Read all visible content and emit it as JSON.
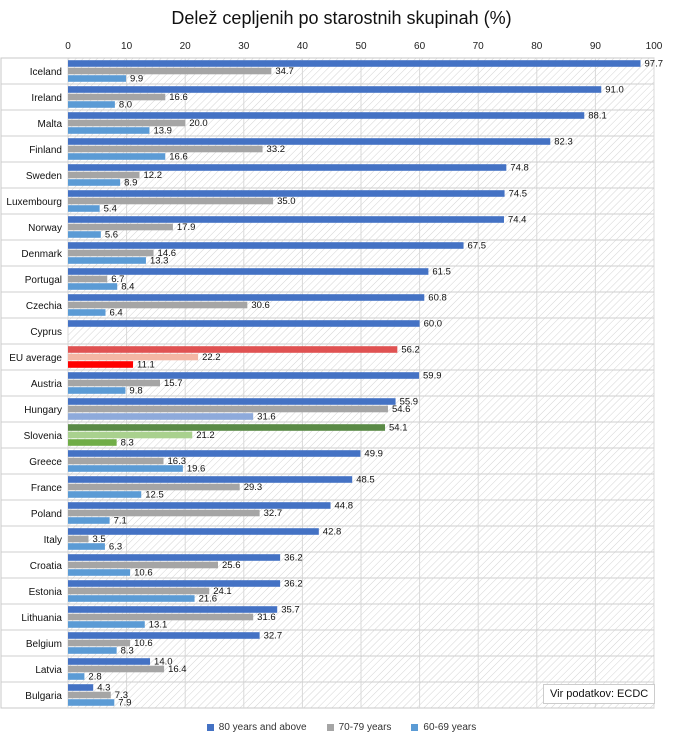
{
  "chart_data": {
    "type": "bar",
    "orientation": "horizontal",
    "title": "Delež cepljenih po starostnih skupinah (%)",
    "xlim": [
      0,
      100
    ],
    "xticks": [
      0,
      10,
      20,
      30,
      40,
      50,
      60,
      70,
      80,
      90,
      100
    ],
    "categories": [
      "Iceland",
      "Ireland",
      "Malta",
      "Finland",
      "Sweden",
      "Luxembourg",
      "Norway",
      "Denmark",
      "Portugal",
      "Czechia",
      "Cyprus",
      "EU average",
      "Austria",
      "Hungary",
      "Slovenia",
      "Greece",
      "France",
      "Poland",
      "Italy",
      "Croatia",
      "Estonia",
      "Lithuania",
      "Belgium",
      "Latvia",
      "Bulgaria"
    ],
    "series": [
      {
        "name": "80 years and above",
        "color": "#4472c4",
        "values": [
          97.7,
          91.0,
          88.1,
          82.3,
          74.8,
          74.5,
          74.4,
          67.5,
          61.5,
          60.8,
          60.0,
          56.2,
          59.9,
          55.9,
          54.1,
          49.9,
          48.5,
          44.8,
          42.8,
          36.2,
          36.2,
          35.7,
          32.7,
          14.0,
          4.3
        ]
      },
      {
        "name": "70-79 years",
        "color": "#a5a5a5",
        "values": [
          34.7,
          16.6,
          20.0,
          33.2,
          12.2,
          35.0,
          17.9,
          14.6,
          6.7,
          30.6,
          null,
          22.2,
          15.7,
          54.6,
          21.2,
          16.3,
          29.3,
          32.7,
          3.5,
          25.6,
          24.1,
          31.6,
          10.6,
          16.4,
          7.3
        ]
      },
      {
        "name": "60-69 years",
        "color": "#5b9bd5",
        "values": [
          9.9,
          8.0,
          13.9,
          16.6,
          8.9,
          5.4,
          5.6,
          13.3,
          8.4,
          6.4,
          null,
          11.1,
          9.8,
          31.6,
          8.3,
          19.6,
          12.5,
          7.1,
          6.3,
          10.6,
          21.6,
          13.1,
          8.3,
          2.8,
          7.9
        ]
      }
    ],
    "highlight_colors": {
      "EU average": [
        "#e05252",
        "#f4b6a4",
        "#ff0000"
      ],
      "Hungary": [
        "#4472c4",
        "#a5a5a5",
        "#8eaadb"
      ],
      "Slovenia": [
        "#5a8a46",
        "#a9d18e",
        "#70ad47"
      ]
    },
    "source_note": "Vir podatkov: ECDC",
    "legend_position": "bottom"
  }
}
